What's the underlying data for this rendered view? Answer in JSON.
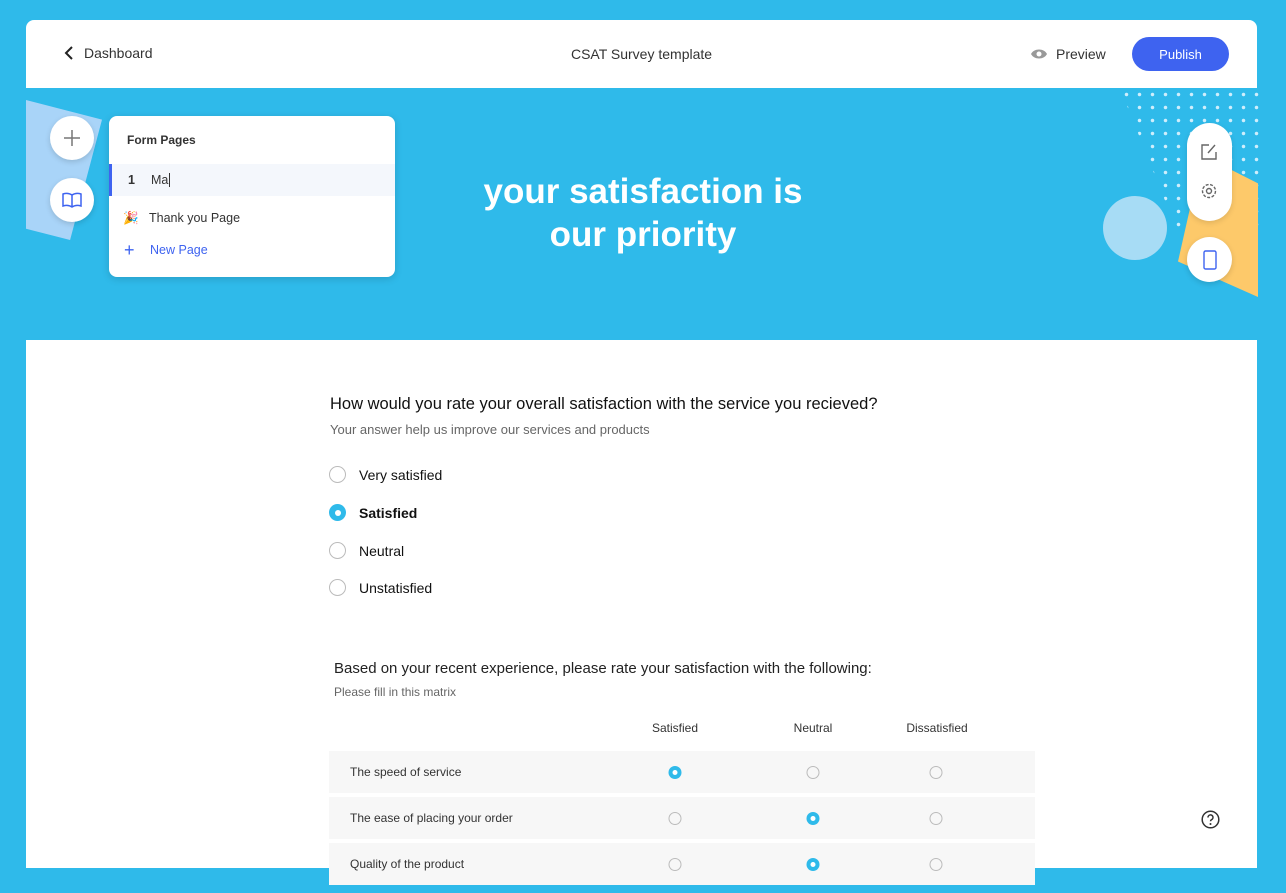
{
  "header": {
    "back_label": "Dashboard",
    "title": "CSAT Survey template",
    "preview_label": "Preview",
    "publish_label": "Publish"
  },
  "form_pages": {
    "title": "Form Pages",
    "pages": [
      {
        "number": "1",
        "name": "Ma"
      },
      {
        "icon": "🎉",
        "name": "Thank you Page"
      }
    ],
    "new_page_label": "New Page"
  },
  "hero": {
    "line1": "your satisfaction is",
    "line2": "our priority"
  },
  "question1": {
    "title": "How would you rate your overall satisfaction with the service you recieved?",
    "subtitle": "Your answer help us improve our services and products",
    "options": [
      "Very satisfied",
      "Satisfied",
      "Neutral",
      "Unstatisfied"
    ],
    "selected": "Satisfied"
  },
  "question2": {
    "title": "Based on your recent experience, please rate your satisfaction with the following:",
    "subtitle": "Please fill in this matrix",
    "columns": [
      "Satisfied",
      "Neutral",
      "Dissatisfied"
    ],
    "rows": [
      {
        "label": "The speed of service",
        "selected": "Satisfied"
      },
      {
        "label": "The ease of placing your order",
        "selected": "Neutral"
      },
      {
        "label": "Quality of the product",
        "selected": "Neutral"
      }
    ]
  },
  "colors": {
    "background": "#2fbaea",
    "accent": "#3e63f0",
    "radio": "#2fbaea"
  }
}
